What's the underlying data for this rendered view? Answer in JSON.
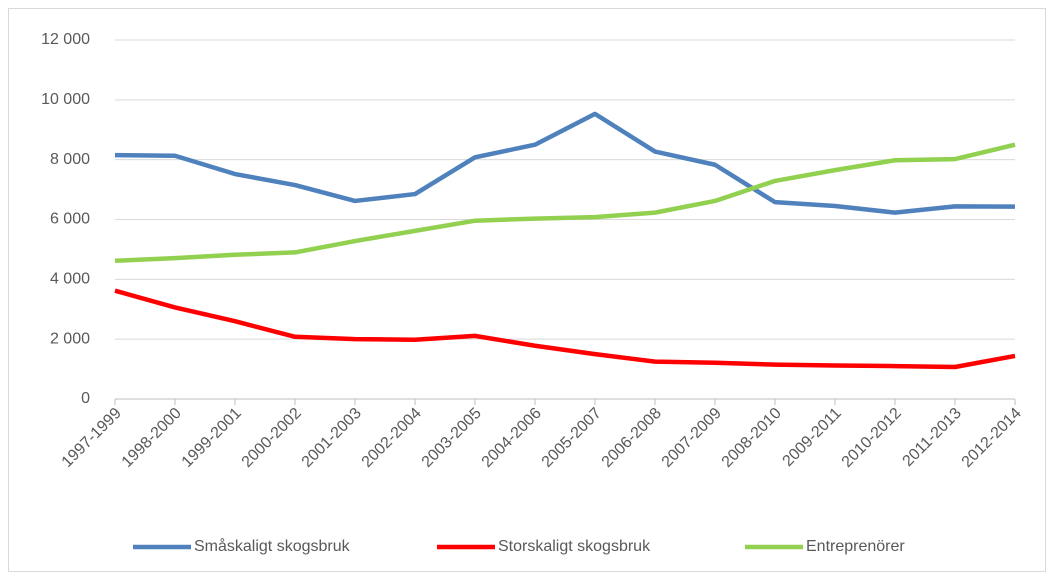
{
  "chart_data": {
    "type": "line",
    "categories": [
      "1997-1999",
      "1998-2000",
      "1999-2001",
      "2000-2002",
      "2001-2003",
      "2002-2004",
      "2003-2005",
      "2004-2006",
      "2005-2007",
      "2006-2008",
      "2007-2009",
      "2008-2010",
      "2009-2011",
      "2010-2012",
      "2011-2013",
      "2012-2014"
    ],
    "series": [
      {
        "name": "Småskaligt skogsbruk",
        "color": "#4f81bd",
        "values": [
          8150,
          8130,
          7520,
          7150,
          6620,
          6850,
          8080,
          8500,
          9530,
          8270,
          7830,
          6580,
          6450,
          6230,
          6440,
          6430
        ]
      },
      {
        "name": "Storskaligt skogsbruk",
        "color": "#ff0000",
        "values": [
          3620,
          3060,
          2600,
          2080,
          2000,
          1980,
          2110,
          1780,
          1500,
          1250,
          1210,
          1150,
          1120,
          1100,
          1070,
          1440
        ]
      },
      {
        "name": "Entreprenörer",
        "color": "#92d050",
        "values": [
          4620,
          4710,
          4820,
          4900,
          5280,
          5620,
          5960,
          6030,
          6080,
          6230,
          6620,
          7290,
          7650,
          7980,
          8020,
          8500
        ]
      }
    ],
    "ylim": [
      0,
      12000
    ],
    "yticks": [
      0,
      {
        "value": 2000,
        "label": "2 000"
      },
      {
        "value": 4000,
        "label": "4 000"
      },
      {
        "value": 6000,
        "label": "6 000"
      },
      {
        "value": 8000,
        "label": "8 000"
      },
      {
        "value": 10000,
        "label": "10 000"
      },
      {
        "value": 12000,
        "label": "12 000"
      }
    ],
    "grid": true,
    "legend": "bottom"
  }
}
